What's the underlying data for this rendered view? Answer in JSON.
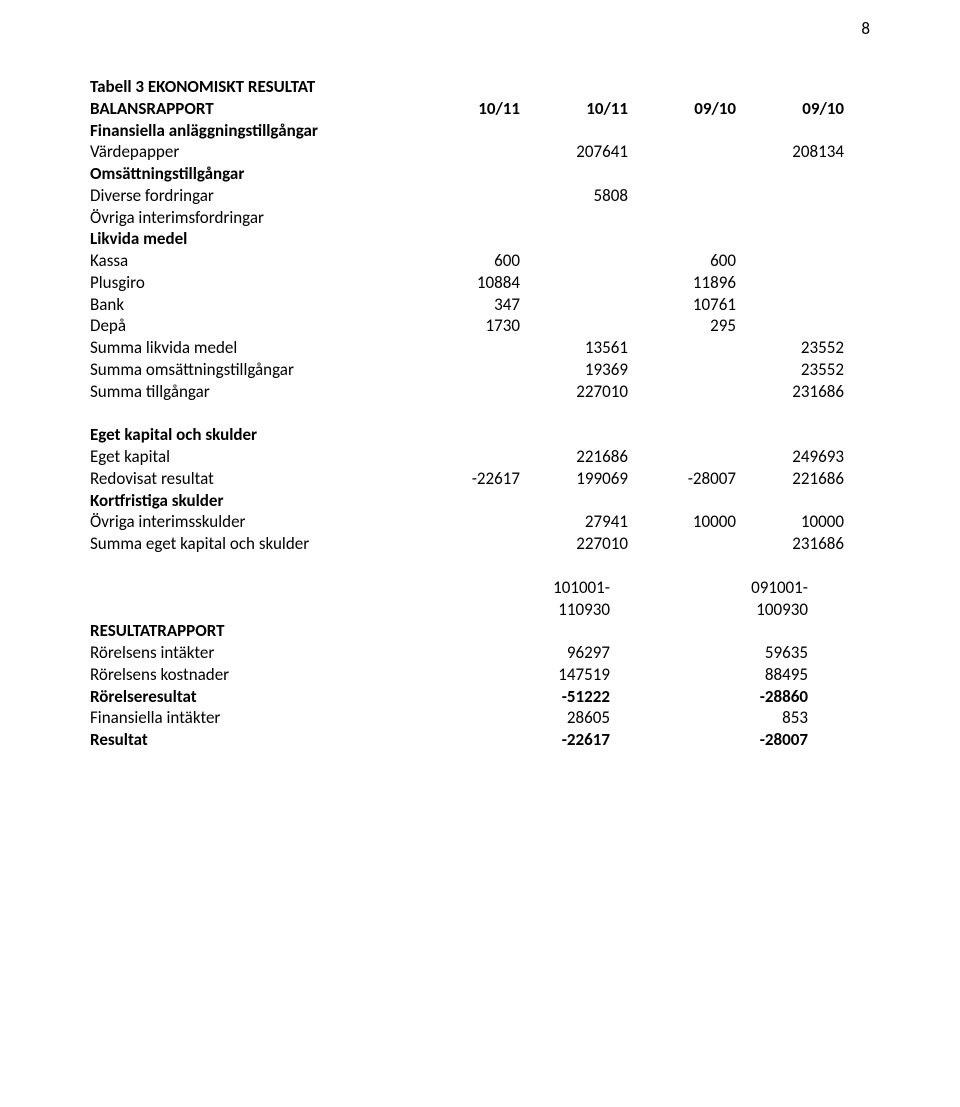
{
  "pageNumber": "8",
  "tableTitle": "Tabell 3 EKONOMISKT RESULTAT",
  "balanceHeader": {
    "label": "BALANSRAPPORT",
    "c1": "10/11",
    "c2": "10/11",
    "c3": "09/10",
    "c4": "09/10"
  },
  "balanceRows": [
    {
      "label": "Finansiella anläggningstillgångar",
      "bold": true
    },
    {
      "label": "Värdepapper",
      "c2": "207641",
      "c4": "208134"
    },
    {
      "label": "Omsättningstillgångar",
      "bold": true
    },
    {
      "label": "Diverse fordringar",
      "c2": "5808"
    },
    {
      "label": "Övriga interimsfordringar"
    },
    {
      "label": "Likvida medel",
      "bold": true
    },
    {
      "label": "Kassa",
      "c1": "600",
      "c3": "600"
    },
    {
      "label": "Plusgiro",
      "c1": "10884",
      "c3": "11896"
    },
    {
      "label": "Bank",
      "c1": "347",
      "c3": "10761"
    },
    {
      "label": "Depå",
      "c1": "1730",
      "c3": "295"
    },
    {
      "label": "Summa likvida medel",
      "c2": "13561",
      "c4": "23552"
    },
    {
      "label": "Summa omsättningstillgångar",
      "c2": "19369",
      "c4": "23552"
    },
    {
      "label": "Summa tillgångar",
      "c2": "227010",
      "c4": "231686"
    }
  ],
  "equitySectionTitle": "Eget kapital och skulder",
  "equityRows": [
    {
      "label": "Eget kapital",
      "c2": "221686",
      "c4": "249693"
    },
    {
      "label": "Redovisat resultat",
      "c1": "-22617",
      "c2": "199069",
      "c3": "-28007",
      "c4": "221686"
    },
    {
      "label": "Kortfristiga skulder",
      "bold": true
    },
    {
      "label": "Övriga interimsskulder",
      "c2": "27941",
      "c3": "10000",
      "c4": "10000"
    },
    {
      "label": "Summa eget kapital och skulder",
      "c2": "227010",
      "c4": "231686"
    }
  ],
  "resultHeader": {
    "label": "",
    "c1a": "101001-",
    "c1b": "110930",
    "c2a": "091001-",
    "c2b": "100930"
  },
  "resultTitle": "RESULTATRAPPORT",
  "resultRows": [
    {
      "label": "Rörelsens intäkter",
      "c1": "96297",
      "c2": "59635"
    },
    {
      "label": "Rörelsens kostnader",
      "c1": "147519",
      "c2": "88495"
    },
    {
      "label": "Rörelseresultat",
      "c1": "-51222",
      "c2": "-28860",
      "bold": true
    },
    {
      "label": "Finansiella intäkter",
      "c1": "28605",
      "c2": "853"
    },
    {
      "label": "Resultat",
      "c1": "-22617",
      "c2": "-28007",
      "bold": true
    }
  ]
}
